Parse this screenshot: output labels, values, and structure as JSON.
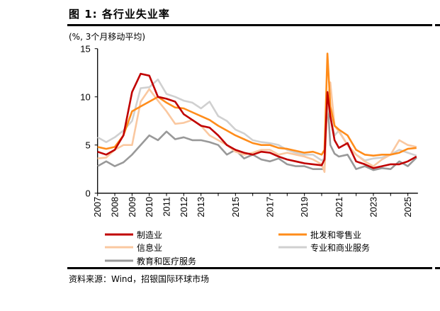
{
  "title": "图 1: 各行业失业率",
  "unit_label": "(%, 3个月移动平均)",
  "source": "资料来源：Wind，招银国际环球市场",
  "chart_data": {
    "type": "line",
    "title": "图 1: 各行业失业率",
    "ylabel": "(%, 3个月移动平均)",
    "ylim": [
      0,
      15
    ],
    "yticks": [
      0,
      5,
      10,
      15
    ],
    "xlim": [
      "2007-01",
      "2025-08"
    ],
    "xticks": [
      "2007",
      "2008",
      "2009",
      "2010",
      "2011",
      "2012",
      "2013",
      "2015",
      "2017",
      "2019",
      "2021",
      "2023",
      "2025"
    ],
    "grid": false,
    "legend_position": "bottom",
    "x": [
      "2007-01",
      "2007-07",
      "2008-01",
      "2008-07",
      "2009-01",
      "2009-07",
      "2010-01",
      "2010-07",
      "2011-01",
      "2011-07",
      "2012-01",
      "2012-07",
      "2013-01",
      "2013-07",
      "2014-01",
      "2014-07",
      "2015-01",
      "2015-07",
      "2016-01",
      "2016-07",
      "2017-01",
      "2017-07",
      "2018-01",
      "2018-07",
      "2019-01",
      "2019-07",
      "2020-01",
      "2020-03",
      "2020-05",
      "2020-07",
      "2020-10",
      "2021-01",
      "2021-07",
      "2022-01",
      "2022-07",
      "2023-01",
      "2023-07",
      "2024-01",
      "2024-07",
      "2025-01",
      "2025-07"
    ],
    "series": [
      {
        "name": "制造业",
        "color": "#C00000",
        "values": [
          4.3,
          4.0,
          4.5,
          6.0,
          10.5,
          12.4,
          12.2,
          10.0,
          9.8,
          9.5,
          8.2,
          7.6,
          7.0,
          6.8,
          6.0,
          5.0,
          4.5,
          4.2,
          4.0,
          4.3,
          4.2,
          3.8,
          3.5,
          3.3,
          3.1,
          3.0,
          2.9,
          3.5,
          10.5,
          8.0,
          5.5,
          4.7,
          5.2,
          3.3,
          3.0,
          2.6,
          2.8,
          3.0,
          3.0,
          3.3,
          3.8
        ]
      },
      {
        "name": "批发和零售业",
        "color": "#FF8C1A",
        "values": [
          4.8,
          4.6,
          4.8,
          6.0,
          8.5,
          9.0,
          9.5,
          10.0,
          9.4,
          8.9,
          8.8,
          8.4,
          8.0,
          7.6,
          7.0,
          6.5,
          6.0,
          5.6,
          5.2,
          5.0,
          5.0,
          4.7,
          4.6,
          4.4,
          4.2,
          4.3,
          4.0,
          4.5,
          14.5,
          9.0,
          7.0,
          6.6,
          6.0,
          4.5,
          4.0,
          3.9,
          4.0,
          4.0,
          4.2,
          4.6,
          4.7
        ]
      },
      {
        "name": "信息业",
        "color": "#FAC8A0",
        "values": [
          3.6,
          3.7,
          4.5,
          5.0,
          5.0,
          9.5,
          10.8,
          9.6,
          8.5,
          7.2,
          7.3,
          7.6,
          7.0,
          6.0,
          5.5,
          5.0,
          4.3,
          4.0,
          4.2,
          4.5,
          4.5,
          4.0,
          4.2,
          4.0,
          3.8,
          3.5,
          3.0,
          2.2,
          9.5,
          11.5,
          7.0,
          6.4,
          5.0,
          4.0,
          3.3,
          2.8,
          3.5,
          4.0,
          5.5,
          5.0,
          4.8
        ]
      },
      {
        "name": "专业和商业服务",
        "color": "#D0D0D0",
        "values": [
          5.8,
          5.3,
          5.8,
          6.5,
          7.5,
          10.9,
          11.0,
          11.8,
          10.3,
          10.0,
          9.6,
          9.4,
          8.8,
          9.5,
          8.0,
          7.5,
          6.6,
          6.2,
          5.5,
          5.3,
          5.2,
          5.0,
          4.5,
          4.2,
          4.0,
          4.0,
          3.4,
          3.6,
          9.0,
          8.0,
          6.0,
          6.5,
          5.0,
          4.0,
          3.4,
          3.6,
          3.7,
          4.0,
          4.5,
          4.2,
          3.9
        ]
      },
      {
        "name": "教育和医疗服务",
        "color": "#999999",
        "values": [
          2.8,
          3.3,
          2.8,
          3.2,
          4.0,
          5.0,
          6.0,
          5.5,
          6.4,
          5.6,
          5.8,
          5.5,
          5.5,
          5.3,
          5.0,
          4.0,
          4.5,
          3.6,
          4.0,
          3.5,
          3.3,
          3.6,
          3.0,
          2.8,
          2.8,
          2.5,
          2.5,
          2.5,
          9.8,
          5.0,
          4.1,
          3.8,
          4.0,
          2.5,
          2.8,
          2.4,
          2.6,
          2.5,
          3.3,
          2.8,
          3.7
        ]
      }
    ]
  }
}
